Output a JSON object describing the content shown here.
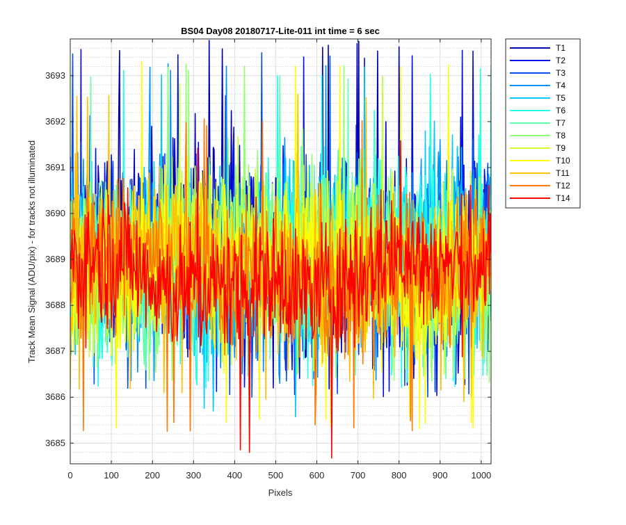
{
  "chart_data": {
    "type": "line",
    "title": "BS04 Day08 20180717-Lite-011 int time = 6 sec",
    "xlabel": "Pixels",
    "ylabel": "Track Mean Signal (ADU/pix) - for tracks not illuminated",
    "xlim": [
      0,
      1024
    ],
    "ylim": [
      3684.55,
      3693.8
    ],
    "x_ticks": [
      0,
      100,
      200,
      300,
      400,
      500,
      600,
      700,
      800,
      900,
      1000
    ],
    "y_ticks": [
      3685,
      3686,
      3687,
      3688,
      3689,
      3690,
      3691,
      3692,
      3693
    ],
    "grid": true,
    "minor_grid": true,
    "legend_position": "outside-top-right",
    "series": [
      {
        "name": "T1",
        "color": "#0000b4",
        "mean": 3689.2,
        "spread": 1.35,
        "min": 3686.1,
        "max": 3693.8
      },
      {
        "name": "T2",
        "color": "#0010e8",
        "mean": 3689.2,
        "spread": 1.35,
        "min": 3686.0,
        "max": 3693.6
      },
      {
        "name": "T3",
        "color": "#0050f0",
        "mean": 3689.1,
        "spread": 1.35,
        "min": 3686.0,
        "max": 3693.5
      },
      {
        "name": "T4",
        "color": "#0090ff",
        "mean": 3689.1,
        "spread": 1.3,
        "min": 3686.3,
        "max": 3693.4
      },
      {
        "name": "T5",
        "color": "#00c8ff",
        "mean": 3689.1,
        "spread": 1.3,
        "min": 3685.5,
        "max": 3693.3
      },
      {
        "name": "T6",
        "color": "#20ffe8",
        "mean": 3689.1,
        "spread": 1.3,
        "min": 3686.2,
        "max": 3693.2
      },
      {
        "name": "T7",
        "color": "#60ffb0",
        "mean": 3689.0,
        "spread": 1.25,
        "min": 3686.4,
        "max": 3693.0
      },
      {
        "name": "T8",
        "color": "#90ff70",
        "mean": 3689.0,
        "spread": 1.25,
        "min": 3686.3,
        "max": 3693.4
      },
      {
        "name": "T9",
        "color": "#d0ff30",
        "mean": 3688.95,
        "spread": 1.25,
        "min": 3686.5,
        "max": 3693.1
      },
      {
        "name": "T10",
        "color": "#ffff00",
        "mean": 3688.9,
        "spread": 1.2,
        "min": 3685.3,
        "max": 3693.4
      },
      {
        "name": "T11",
        "color": "#ffc000",
        "mean": 3688.85,
        "spread": 1.1,
        "min": 3685.9,
        "max": 3692.6
      },
      {
        "name": "T12",
        "color": "#ff7800",
        "mean": 3688.8,
        "spread": 1.05,
        "min": 3685.2,
        "max": 3692.2
      },
      {
        "name": "T14",
        "color": "#ff0000",
        "mean": 3688.7,
        "spread": 0.95,
        "min": 3684.6,
        "max": 3691.7
      }
    ]
  }
}
